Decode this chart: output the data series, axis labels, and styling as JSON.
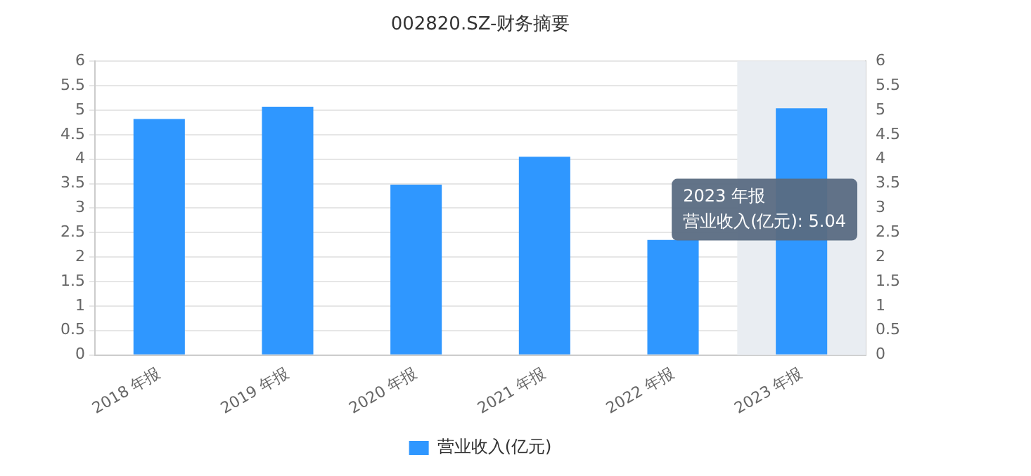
{
  "chart_data": {
    "type": "bar",
    "title": "002820.SZ-财务摘要",
    "categories": [
      "2018 年报",
      "2019 年报",
      "2020 年报",
      "2021 年报",
      "2022 年报",
      "2023 年报"
    ],
    "series": [
      {
        "name": "营业收入(亿元)",
        "color": "#2f97ff",
        "values": [
          4.82,
          5.07,
          3.48,
          4.05,
          2.35,
          5.04
        ]
      }
    ],
    "ylim": [
      0,
      6
    ],
    "yticks": [
      0,
      0.5,
      1,
      1.5,
      2,
      2.5,
      3,
      3.5,
      4,
      4.5,
      5,
      5.5,
      6
    ],
    "y2lim": [
      0,
      6
    ],
    "y2ticks": [
      0,
      0.5,
      1,
      1.5,
      2,
      2.5,
      3,
      3.5,
      4,
      4.5,
      5,
      5.5,
      6
    ],
    "bands": [
      {
        "axis": "x",
        "from": "2023 年报",
        "to": "2023 年报",
        "color": "#e9edf2"
      }
    ],
    "annotations": [
      "2023 年报",
      "营业收入(亿元): 5.04"
    ],
    "grid": "y",
    "legend": "bottom"
  }
}
